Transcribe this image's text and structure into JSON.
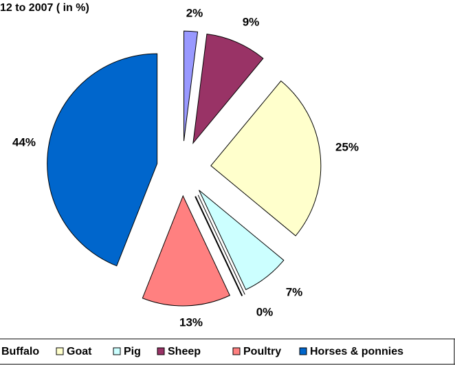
{
  "chart_data": {
    "type": "pie",
    "title": "12 to 2007 ( in %)",
    "categories": [
      "Buffalo",
      "Sheep",
      "Goat",
      "Pig",
      null,
      "Poultry",
      "Horses & ponnies"
    ],
    "values": [
      2,
      9,
      25,
      7,
      0,
      13,
      44
    ],
    "value_labels": [
      "2%",
      "9%",
      "25%",
      "7%",
      "0%",
      "13%",
      "44%"
    ],
    "colors": [
      "#9999ff",
      "#993366",
      "#ffffcc",
      "#ccffff",
      "#ffffff",
      "#ff8080",
      "#0066cc"
    ],
    "legend": "bottom"
  }
}
